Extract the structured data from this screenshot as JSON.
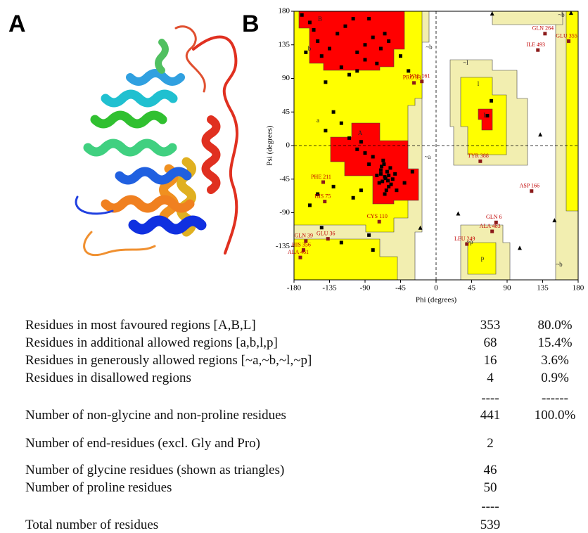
{
  "panels": {
    "a_label": "A",
    "b_label": "B"
  },
  "chart_data": {
    "type": "scatter",
    "xlabel": "Phi (degrees)",
    "ylabel": "Psi (degrees)",
    "xlim": [
      -180,
      180
    ],
    "ylim": [
      -180,
      180
    ],
    "xticks": [
      -180,
      -135,
      -90,
      -45,
      0,
      45,
      90,
      135,
      180
    ],
    "yticks": [
      -135,
      -90,
      -45,
      0,
      45,
      90,
      135,
      180
    ],
    "region_labels": [
      "A",
      "B",
      "L",
      "a",
      "b",
      "l",
      "p",
      "~a",
      "~b",
      "~l",
      "~p",
      "~b",
      "~b"
    ],
    "residues": {
      "color": "#000000",
      "x": [
        -60,
        -65,
        -70,
        -55,
        -62,
        -68,
        -58,
        -72,
        -64,
        -66,
        -60,
        -75,
        -52,
        -63,
        -67,
        -70,
        -61,
        -57,
        -69,
        -65,
        -80,
        -90,
        -100,
        -85,
        -95,
        -110,
        -120,
        -130,
        -140,
        -125,
        -115,
        -105,
        -150,
        -160,
        -135,
        -145,
        -100,
        -90,
        -80,
        -70,
        -60,
        -75,
        -65,
        -85,
        -155,
        -165,
        -170,
        -120,
        -110,
        -140,
        -100,
        -90,
        -50,
        -40,
        -30,
        -95,
        -105,
        -130,
        -150,
        -160,
        -145,
        -120,
        -80,
        -85,
        70,
        65,
        -45,
        -35
      ],
      "y": [
        -40,
        -42,
        -38,
        -45,
        -35,
        -48,
        -30,
        -50,
        -44,
        -25,
        -55,
        -40,
        -38,
        -60,
        -20,
        -33,
        -47,
        -52,
        -28,
        -65,
        -15,
        -10,
        -5,
        -25,
        5,
        10,
        30,
        45,
        20,
        150,
        160,
        170,
        140,
        165,
        130,
        120,
        125,
        135,
        145,
        130,
        140,
        110,
        150,
        170,
        155,
        125,
        175,
        105,
        95,
        85,
        100,
        115,
        -60,
        -50,
        -35,
        -60,
        -70,
        -55,
        -65,
        -80,
        -110,
        -130,
        -140,
        -120,
        60,
        40,
        120,
        100
      ]
    },
    "glycines": {
      "color": "#000000",
      "x": [
        132,
        171,
        71,
        106,
        28,
        150,
        -20
      ],
      "y": [
        15,
        178,
        177,
        -137,
        -91,
        -100,
        -110
      ]
    },
    "labeled": {
      "color": "#8b1a1a",
      "points": [
        {
          "label": "VAL 161",
          "x": -18,
          "y": 86
        },
        {
          "label": "PRO 83",
          "x": -28,
          "y": 84
        },
        {
          "label": "GLN 264",
          "x": 138,
          "y": 150
        },
        {
          "label": "GLU 355",
          "x": 168,
          "y": 140
        },
        {
          "label": "ILE 493",
          "x": 129,
          "y": 128
        },
        {
          "label": "TYR 388",
          "x": 56,
          "y": -21
        },
        {
          "label": "ASP 166",
          "x": 121,
          "y": -61
        },
        {
          "label": "PHE 211",
          "x": -143,
          "y": -49
        },
        {
          "label": "HIS 75",
          "x": -141,
          "y": -75
        },
        {
          "label": "CYS 110",
          "x": -72,
          "y": -102
        },
        {
          "label": "GLN 6",
          "x": 76,
          "y": -103
        },
        {
          "label": "ALA 483",
          "x": 71,
          "y": -115
        },
        {
          "label": "LEU 249",
          "x": 39,
          "y": -132
        },
        {
          "label": "GLU 36",
          "x": -137,
          "y": -125
        },
        {
          "label": "GLN 39",
          "x": -165,
          "y": -128
        },
        {
          "label": "HIS 356",
          "x": -168,
          "y": -140
        },
        {
          "label": "ALA 461",
          "x": -172,
          "y": -150
        }
      ]
    }
  },
  "table": {
    "rows": [
      {
        "label": "Residues in most favoured regions  [A,B,L]",
        "count": 353,
        "percent": "80.0%"
      },
      {
        "label": "Residues in additional allowed regions  [a,b,l,p]",
        "count": 68,
        "percent": "15.4%"
      },
      {
        "label": "Residues in generously allowed regions  [~a,~b,~l,~p]",
        "count": 16,
        "percent": "3.6%"
      },
      {
        "label": "Residues in disallowed regions",
        "count": 4,
        "percent": "0.9%"
      },
      {
        "count": "----",
        "percent": "------"
      },
      {
        "label": "Number of non-glycine and non-proline residues",
        "count": 441,
        "percent": "100.0%"
      },
      {
        "label": "Number of end-residues (excl. Gly and Pro)",
        "count": 2
      },
      {
        "label": "Number of glycine residues (shown as triangles)",
        "count": 46
      },
      {
        "label": "Number of proline residues",
        "count": 50
      },
      {
        "count": "----"
      },
      {
        "label": "Total number of residues",
        "count": 539
      }
    ]
  }
}
